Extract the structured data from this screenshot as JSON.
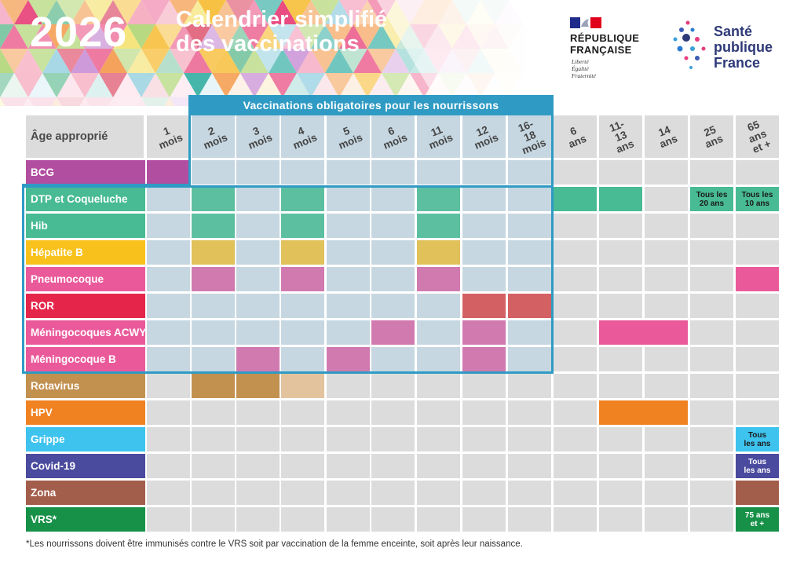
{
  "header": {
    "year": "2026",
    "title_line1": "Calendrier simplifié",
    "title_line2": "des vaccinations",
    "republique": {
      "line1": "RÉPUBLIQUE",
      "line2": "FRANÇAISE",
      "motto": [
        "Liberté",
        "Égalité",
        "Fraternité"
      ]
    },
    "spf": {
      "line1": "Santé",
      "line2": "publique",
      "line3": "France"
    }
  },
  "mandatory_label": "Vaccinations obligatoires pour les nourrissons",
  "age_header": "Âge approprié",
  "columns": [
    "1 mois",
    "2 mois",
    "3 mois",
    "4 mois",
    "5 mois",
    "6 mois",
    "11 mois",
    "12 mois",
    "16-18\nmois",
    "6 ans",
    "11-13\nans",
    "14 ans",
    "25 ans",
    "65 ans\net +"
  ],
  "vaccines": [
    {
      "name": "BCG",
      "color": "#b24ea0",
      "cells": [
        {
          "col": 0,
          "span": 1,
          "color": "#b24ea0"
        }
      ]
    },
    {
      "name": "DTP et Coqueluche",
      "color": "#48bb94",
      "cells": [
        {
          "col": 1,
          "span": 1,
          "color": "#5cbfa0"
        },
        {
          "col": 3,
          "span": 1,
          "color": "#5cbfa0"
        },
        {
          "col": 6,
          "span": 1,
          "color": "#5cbfa0"
        },
        {
          "col": 9,
          "span": 1,
          "color": "#48bb94"
        },
        {
          "col": 10,
          "span": 1,
          "color": "#48bb94"
        },
        {
          "col": 12,
          "span": 1,
          "color": "#48bb94",
          "note": "Tous les\n20 ans"
        },
        {
          "col": 13,
          "span": 1,
          "color": "#48bb94",
          "note": "Tous les\n10 ans"
        }
      ]
    },
    {
      "name": "Hib",
      "color": "#48bb94",
      "cells": [
        {
          "col": 1,
          "span": 1,
          "color": "#5cbfa0"
        },
        {
          "col": 3,
          "span": 1,
          "color": "#5cbfa0"
        },
        {
          "col": 6,
          "span": 1,
          "color": "#5cbfa0"
        }
      ]
    },
    {
      "name": "Hépatite B",
      "color": "#f9c11b",
      "cells": [
        {
          "col": 1,
          "span": 1,
          "color": "#e0c15a"
        },
        {
          "col": 3,
          "span": 1,
          "color": "#e0c15a"
        },
        {
          "col": 6,
          "span": 1,
          "color": "#e0c15a"
        }
      ]
    },
    {
      "name": "Pneumocoque",
      "color": "#ea5a9b",
      "cells": [
        {
          "col": 1,
          "span": 1,
          "color": "#d17ab0"
        },
        {
          "col": 3,
          "span": 1,
          "color": "#d17ab0"
        },
        {
          "col": 6,
          "span": 1,
          "color": "#d17ab0"
        },
        {
          "col": 13,
          "span": 1,
          "color": "#ea5a9b"
        }
      ]
    },
    {
      "name": "ROR",
      "color": "#e5264a",
      "cells": [
        {
          "col": 7,
          "span": 1,
          "color": "#d36062"
        },
        {
          "col": 8,
          "span": 1,
          "color": "#d36062"
        }
      ]
    },
    {
      "name": "Méningocoques ACWY",
      "color": "#ea5a9b",
      "cells": [
        {
          "col": 5,
          "span": 1,
          "color": "#d17ab0"
        },
        {
          "col": 7,
          "span": 1,
          "color": "#d17ab0"
        },
        {
          "col": 10,
          "span": 2,
          "color": "#ea5a9b"
        }
      ]
    },
    {
      "name": "Méningocoque B",
      "color": "#ea5a9b",
      "cells": [
        {
          "col": 2,
          "span": 1,
          "color": "#d17ab0"
        },
        {
          "col": 4,
          "span": 1,
          "color": "#d17ab0"
        },
        {
          "col": 7,
          "span": 1,
          "color": "#d17ab0"
        }
      ]
    },
    {
      "name": "Rotavirus",
      "color": "#c2904f",
      "cells": [
        {
          "col": 1,
          "span": 1,
          "color": "#c2904f"
        },
        {
          "col": 2,
          "span": 1,
          "color": "#c2904f"
        },
        {
          "col": 3,
          "span": 1,
          "color": "#e2c39d"
        }
      ]
    },
    {
      "name": "HPV",
      "color": "#f08222",
      "cells": [
        {
          "col": 10,
          "span": 2,
          "color": "#f08222"
        }
      ]
    },
    {
      "name": "Grippe",
      "color": "#3ec3ee",
      "cells": [
        {
          "col": 13,
          "span": 1,
          "color": "#3ec3ee",
          "note": "Tous\nles ans"
        }
      ]
    },
    {
      "name": "Covid-19",
      "color": "#4a4a9e",
      "cells": [
        {
          "col": 13,
          "span": 1,
          "color": "#4a4a9e",
          "note": "Tous\nles ans",
          "light": true
        }
      ]
    },
    {
      "name": "Zona",
      "color": "#a35d4b",
      "cells": [
        {
          "col": 13,
          "span": 1,
          "color": "#a35d4b"
        }
      ]
    },
    {
      "name": "VRS*",
      "color": "#179148",
      "cells": [
        {
          "col": 13,
          "span": 1,
          "color": "#179148",
          "note": "75 ans\net +",
          "light": true
        }
      ]
    }
  ],
  "footnote": "*Les nourrissons doivent être immunisés contre le VRS soit par vaccination de la femme enceinte, soit après leur naissance.",
  "colors": {
    "mandatory_blue": "#2f9bc4",
    "empty_cell": "#dcdcdc",
    "mandatory_cell": "#c6d7e1"
  }
}
